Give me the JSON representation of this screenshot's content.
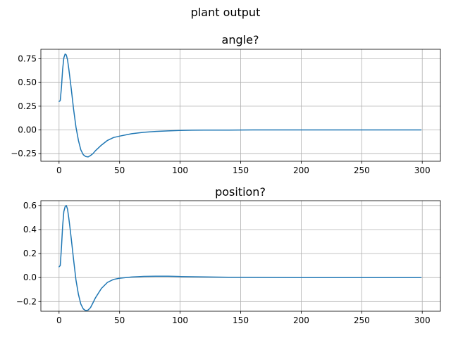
{
  "figure": {
    "suptitle": "plant output"
  },
  "chart_data": [
    {
      "type": "line",
      "title": "angle?",
      "xlabel": "",
      "ylabel": "",
      "xlim": [
        -15,
        315
      ],
      "ylim": [
        -0.33,
        0.85
      ],
      "grid": true,
      "xticks": [
        0,
        50,
        100,
        150,
        200,
        250,
        300
      ],
      "xtick_labels": [
        "0",
        "50",
        "100",
        "150",
        "200",
        "250",
        "300"
      ],
      "yticks": [
        -0.25,
        0,
        0.25,
        0.5,
        0.75
      ],
      "ytick_labels": [
        "−0.25",
        "0.00",
        "0.25",
        "0.50",
        "0.75"
      ],
      "series": [
        {
          "color": "#1f77b4",
          "x": [
            0,
            1,
            2,
            3,
            4,
            5,
            6,
            7,
            8,
            9,
            10,
            12,
            14,
            16,
            18,
            20,
            22,
            24,
            26,
            28,
            30,
            35,
            40,
            45,
            50,
            60,
            70,
            80,
            90,
            100,
            110,
            120,
            140,
            160,
            200,
            250,
            299
          ],
          "y": [
            0.3,
            0.31,
            0.45,
            0.64,
            0.76,
            0.8,
            0.79,
            0.74,
            0.65,
            0.55,
            0.44,
            0.22,
            0.03,
            -0.11,
            -0.21,
            -0.26,
            -0.28,
            -0.285,
            -0.27,
            -0.25,
            -0.22,
            -0.16,
            -0.11,
            -0.08,
            -0.065,
            -0.04,
            -0.025,
            -0.015,
            -0.01,
            -0.005,
            -0.003,
            -0.002,
            -0.001,
            0.0,
            0.0,
            0.0,
            0.0
          ]
        }
      ]
    },
    {
      "type": "line",
      "title": "position?",
      "xlabel": "",
      "ylabel": "",
      "xlim": [
        -15,
        315
      ],
      "ylim": [
        -0.28,
        0.64
      ],
      "grid": true,
      "xticks": [
        0,
        50,
        100,
        150,
        200,
        250,
        300
      ],
      "xtick_labels": [
        "0",
        "50",
        "100",
        "150",
        "200",
        "250",
        "300"
      ],
      "yticks": [
        -0.2,
        0,
        0.2,
        0.4,
        0.6
      ],
      "ytick_labels": [
        "−0.2",
        "0.0",
        "0.2",
        "0.4",
        "0.6"
      ],
      "series": [
        {
          "color": "#1f77b4",
          "x": [
            0,
            1,
            2,
            3,
            4,
            5,
            6,
            7,
            8,
            9,
            10,
            12,
            14,
            16,
            18,
            20,
            22,
            24,
            26,
            28,
            30,
            35,
            40,
            45,
            50,
            60,
            70,
            80,
            90,
            100,
            120,
            140,
            160,
            200,
            250,
            299
          ],
          "y": [
            0.09,
            0.1,
            0.25,
            0.43,
            0.55,
            0.59,
            0.6,
            0.57,
            0.5,
            0.42,
            0.33,
            0.15,
            -0.02,
            -0.14,
            -0.22,
            -0.26,
            -0.275,
            -0.27,
            -0.25,
            -0.21,
            -0.17,
            -0.09,
            -0.04,
            -0.015,
            -0.005,
            0.005,
            0.01,
            0.012,
            0.011,
            0.009,
            0.006,
            0.003,
            0.002,
            0.0,
            0.0,
            0.0
          ]
        }
      ]
    }
  ]
}
